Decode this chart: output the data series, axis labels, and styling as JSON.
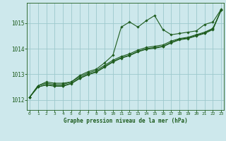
{
  "title": "Graphe pression niveau de la mer (hPa)",
  "bg_color": "#cde8ec",
  "grid_color": "#9dc8cc",
  "line_color": "#1e5c1e",
  "x_ticks": [
    0,
    1,
    2,
    3,
    4,
    5,
    6,
    7,
    8,
    9,
    10,
    11,
    12,
    13,
    14,
    15,
    16,
    17,
    18,
    19,
    20,
    21,
    22,
    23
  ],
  "y_ticks": [
    1012,
    1013,
    1014,
    1015
  ],
  "ylim": [
    1011.6,
    1015.8
  ],
  "xlim": [
    -0.3,
    23.3
  ],
  "series": [
    [
      1012.1,
      1012.55,
      1012.7,
      1012.65,
      1012.65,
      1012.7,
      1012.95,
      1013.1,
      1013.2,
      1013.45,
      1013.75,
      1014.85,
      1015.05,
      1014.85,
      1015.1,
      1015.3,
      1014.75,
      1014.55,
      1014.6,
      1014.65,
      1014.7,
      1014.95,
      1015.05,
      1015.55
    ],
    [
      1012.1,
      1012.55,
      1012.65,
      1012.6,
      1012.6,
      1012.7,
      1012.9,
      1013.05,
      1013.15,
      1013.35,
      1013.55,
      1013.7,
      1013.8,
      1013.95,
      1014.05,
      1014.1,
      1014.15,
      1014.3,
      1014.4,
      1014.45,
      1014.55,
      1014.65,
      1014.8,
      1015.52
    ],
    [
      1012.1,
      1012.5,
      1012.6,
      1012.55,
      1012.55,
      1012.65,
      1012.85,
      1013.0,
      1013.1,
      1013.3,
      1013.5,
      1013.65,
      1013.75,
      1013.9,
      1014.0,
      1014.05,
      1014.1,
      1014.25,
      1014.38,
      1014.42,
      1014.52,
      1014.62,
      1014.78,
      1015.52
    ],
    [
      1012.1,
      1012.5,
      1012.58,
      1012.53,
      1012.53,
      1012.63,
      1012.83,
      1012.98,
      1013.08,
      1013.28,
      1013.48,
      1013.63,
      1013.73,
      1013.88,
      1013.98,
      1014.02,
      1014.08,
      1014.23,
      1014.35,
      1014.4,
      1014.5,
      1014.6,
      1014.75,
      1015.52
    ]
  ]
}
